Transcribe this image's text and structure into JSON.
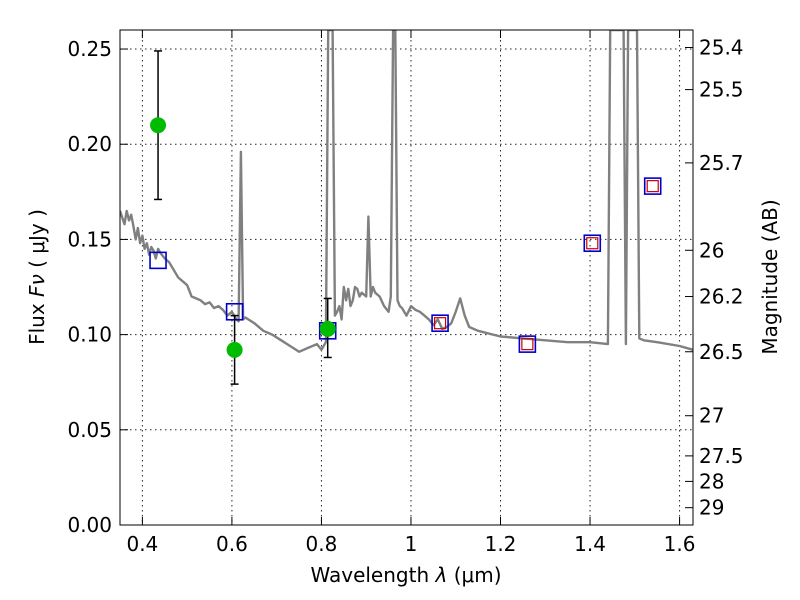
{
  "chart_data": {
    "type": "scatter",
    "x_axis": {
      "label_prefix": "Wavelength",
      "label_symbol": "λ",
      "label_unit": "(μm)",
      "range": [
        0.35,
        1.63
      ],
      "ticks": [
        0.4,
        0.6,
        0.8,
        1.0,
        1.2,
        1.4,
        1.6
      ],
      "tick_labels": [
        "0.4",
        "0.6",
        "0.8",
        "1",
        "1.2",
        "1.4",
        "1.6"
      ]
    },
    "y_axis": {
      "label_prefix": "Flux",
      "label_symbol": "Fν",
      "label_unit": "( μJy )",
      "range": [
        0.0,
        0.26
      ],
      "ticks": [
        0.0,
        0.05,
        0.1,
        0.15,
        0.2,
        0.25
      ],
      "tick_labels": [
        "0.00",
        "0.05",
        "0.10",
        "0.15",
        "0.20",
        "0.25"
      ]
    },
    "y2_axis": {
      "label": "Magnitude (AB)",
      "ticks": [
        {
          "label": "25.4",
          "flux": 0.2508
        },
        {
          "label": "25.5",
          "flux": 0.2287
        },
        {
          "label": "25.7",
          "flux": 0.1902
        },
        {
          "label": "26",
          "flux": 0.1443
        },
        {
          "label": "26.2",
          "flux": 0.12
        },
        {
          "label": "26.5",
          "flux": 0.091
        },
        {
          "label": "27",
          "flux": 0.0574
        },
        {
          "label": "27.5",
          "flux": 0.0363
        },
        {
          "label": "28",
          "flux": 0.0229
        },
        {
          "label": "29",
          "flux": 0.0091
        }
      ]
    },
    "grid": true,
    "observed": {
      "color": "#00bb00",
      "points": [
        {
          "x": 0.435,
          "y": 0.21,
          "err_low": 0.171,
          "err_high": 0.249
        },
        {
          "x": 0.606,
          "y": 0.092,
          "err_low": 0.074,
          "err_high": 0.11
        },
        {
          "x": 0.814,
          "y": 0.103,
          "err_low": 0.088,
          "err_high": 0.119
        }
      ]
    },
    "model_photometry": {
      "color": "#0000cc",
      "points": [
        {
          "x": 0.435,
          "y": 0.139
        },
        {
          "x": 0.606,
          "y": 0.112
        },
        {
          "x": 0.814,
          "y": 0.102
        },
        {
          "x": 1.065,
          "y": 0.106
        },
        {
          "x": 1.26,
          "y": 0.095
        },
        {
          "x": 1.405,
          "y": 0.148
        },
        {
          "x": 1.54,
          "y": 0.178
        }
      ]
    },
    "ir_photometry": {
      "color": "#cc0000",
      "points": [
        {
          "x": 1.065,
          "y": 0.106
        },
        {
          "x": 1.26,
          "y": 0.095
        },
        {
          "x": 1.405,
          "y": 0.148
        },
        {
          "x": 1.54,
          "y": 0.178
        }
      ]
    },
    "sed_spectrum": {
      "color": "#808080",
      "x": [
        0.35,
        0.36,
        0.365,
        0.37,
        0.375,
        0.38,
        0.385,
        0.39,
        0.395,
        0.4,
        0.405,
        0.41,
        0.415,
        0.42,
        0.425,
        0.43,
        0.435,
        0.44,
        0.45,
        0.46,
        0.47,
        0.48,
        0.49,
        0.5,
        0.51,
        0.52,
        0.53,
        0.54,
        0.55,
        0.56,
        0.57,
        0.58,
        0.59,
        0.6,
        0.61,
        0.615,
        0.62,
        0.625,
        0.63,
        0.65,
        0.67,
        0.69,
        0.71,
        0.73,
        0.75,
        0.77,
        0.79,
        0.8,
        0.81,
        0.815,
        0.82,
        0.825,
        0.83,
        0.835,
        0.84,
        0.845,
        0.85,
        0.855,
        0.86,
        0.865,
        0.87,
        0.875,
        0.88,
        0.885,
        0.89,
        0.9,
        0.905,
        0.91,
        0.915,
        0.92,
        0.93,
        0.94,
        0.95,
        0.955,
        0.96,
        0.965,
        0.97,
        0.975,
        0.98,
        0.99,
        1.0,
        1.01,
        1.02,
        1.03,
        1.04,
        1.05,
        1.06,
        1.07,
        1.08,
        1.09,
        1.1,
        1.11,
        1.12,
        1.13,
        1.15,
        1.2,
        1.25,
        1.3,
        1.35,
        1.4,
        1.44,
        1.445,
        1.45,
        1.46,
        1.47,
        1.475,
        1.48,
        1.485,
        1.49,
        1.5,
        1.505,
        1.51,
        1.52,
        1.55,
        1.6,
        1.63
      ],
      "y": [
        0.165,
        0.158,
        0.165,
        0.16,
        0.163,
        0.157,
        0.15,
        0.156,
        0.148,
        0.152,
        0.145,
        0.148,
        0.142,
        0.146,
        0.144,
        0.14,
        0.145,
        0.143,
        0.14,
        0.138,
        0.134,
        0.13,
        0.128,
        0.126,
        0.12,
        0.119,
        0.118,
        0.116,
        0.117,
        0.114,
        0.115,
        0.113,
        0.11,
        0.112,
        0.108,
        0.107,
        0.196,
        0.108,
        0.109,
        0.106,
        0.102,
        0.1,
        0.097,
        0.094,
        0.091,
        0.093,
        0.095,
        0.092,
        0.096,
        0.26,
        0.26,
        0.26,
        0.11,
        0.112,
        0.115,
        0.108,
        0.125,
        0.118,
        0.124,
        0.115,
        0.118,
        0.125,
        0.124,
        0.12,
        0.122,
        0.12,
        0.162,
        0.12,
        0.125,
        0.122,
        0.12,
        0.115,
        0.112,
        0.12,
        0.26,
        0.26,
        0.118,
        0.115,
        0.114,
        0.11,
        0.115,
        0.113,
        0.112,
        0.11,
        0.108,
        0.105,
        0.108,
        0.103,
        0.104,
        0.106,
        0.112,
        0.119,
        0.11,
        0.104,
        0.102,
        0.099,
        0.098,
        0.097,
        0.096,
        0.096,
        0.095,
        0.26,
        0.26,
        0.26,
        0.26,
        0.26,
        0.095,
        0.26,
        0.26,
        0.26,
        0.26,
        0.098,
        0.097,
        0.096,
        0.094,
        0.092
      ]
    }
  }
}
